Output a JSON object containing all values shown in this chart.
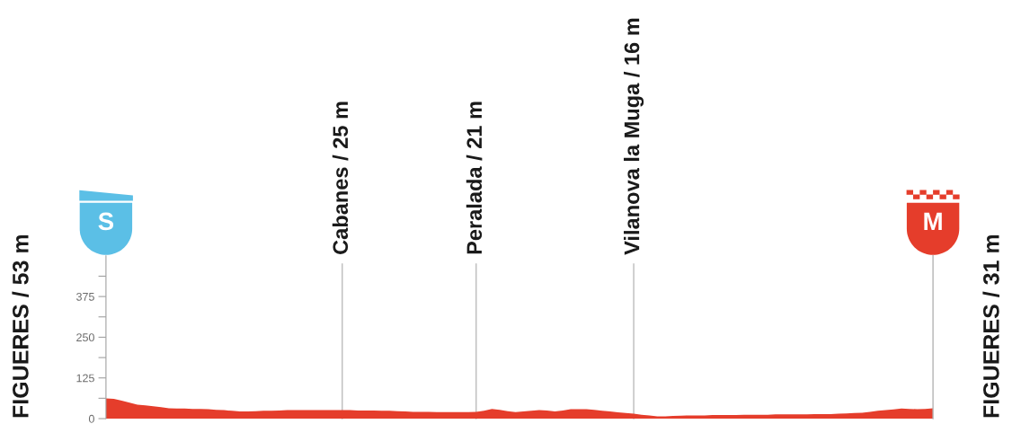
{
  "chart_data": {
    "type": "area",
    "categories": [
      null,
      null,
      null,
      null,
      null,
      null,
      null,
      null,
      null,
      null,
      null,
      null,
      null,
      null,
      null,
      null,
      null,
      null,
      null,
      null,
      null,
      null,
      null,
      null,
      null,
      null,
      null,
      null,
      null,
      null,
      "Cabanes / 25 m",
      null,
      null,
      null,
      null,
      null,
      null,
      null,
      null,
      null,
      null,
      null,
      null,
      null,
      null,
      null,
      null,
      "Peralada / 21 m",
      null,
      null,
      null,
      null,
      null,
      null,
      null,
      null,
      null,
      null,
      null,
      null,
      null,
      null,
      null,
      null,
      null,
      null,
      null,
      "Vilanova la Muga / 16 m",
      null,
      null,
      null,
      null,
      null,
      null,
      null,
      null,
      null,
      null,
      null,
      null,
      null,
      null,
      null,
      null,
      null,
      null,
      null,
      null,
      null,
      null,
      null,
      null,
      null,
      null,
      null,
      null,
      null,
      null,
      null,
      null,
      null,
      null,
      null,
      null,
      null,
      null
    ],
    "values": [
      62,
      61,
      55,
      49,
      43,
      41,
      38,
      35,
      32,
      31,
      31,
      30,
      30,
      29,
      27,
      26,
      24,
      22,
      22,
      23,
      24,
      24,
      25,
      26,
      26,
      26,
      26,
      26,
      26,
      26,
      26,
      26,
      25,
      25,
      25,
      24,
      24,
      23,
      22,
      21,
      21,
      21,
      20,
      20,
      20,
      20,
      20,
      21,
      24,
      30,
      27,
      23,
      20,
      22,
      24,
      26,
      25,
      22,
      25,
      29,
      29,
      29,
      27,
      24,
      22,
      19,
      17,
      15,
      12,
      10,
      7,
      7,
      8,
      9,
      10,
      10,
      10,
      11,
      11,
      11,
      11,
      12,
      12,
      12,
      12,
      13,
      13,
      13,
      13,
      13,
      14,
      14,
      14,
      15,
      16,
      17,
      18,
      21,
      24,
      26,
      28,
      31,
      30,
      29,
      30,
      32
    ],
    "color": "#e53d2b",
    "ylim": [
      0,
      500
    ],
    "yticks": [
      0,
      {
        "value": 62.5,
        "label": null
      },
      125,
      {
        "value": 187.5,
        "label": null
      },
      250,
      {
        "value": 312.5,
        "label": null
      },
      375,
      {
        "value": 437.5,
        "label": null
      }
    ],
    "grid": "x",
    "annotations": [
      "FIGUERES / 53 m",
      "S",
      "M",
      "FIGUERES / 31 m"
    ]
  }
}
